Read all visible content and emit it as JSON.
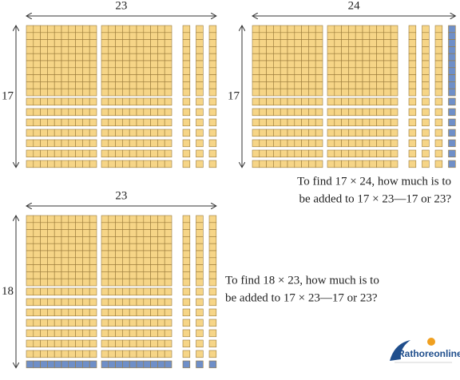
{
  "figures": [
    {
      "width": 23,
      "height": 17
    },
    {
      "width": 24,
      "height": 17,
      "question": [
        "To find 17 × 24, how much is to",
        "be added to 17 × 23—17 or 23?"
      ]
    },
    {
      "width": 23,
      "height": 18,
      "question": [
        "To find 18 × 23, how much is to",
        "be added to 17 × 23—17 or 23?"
      ]
    }
  ],
  "logo": "Rathoreonline"
}
